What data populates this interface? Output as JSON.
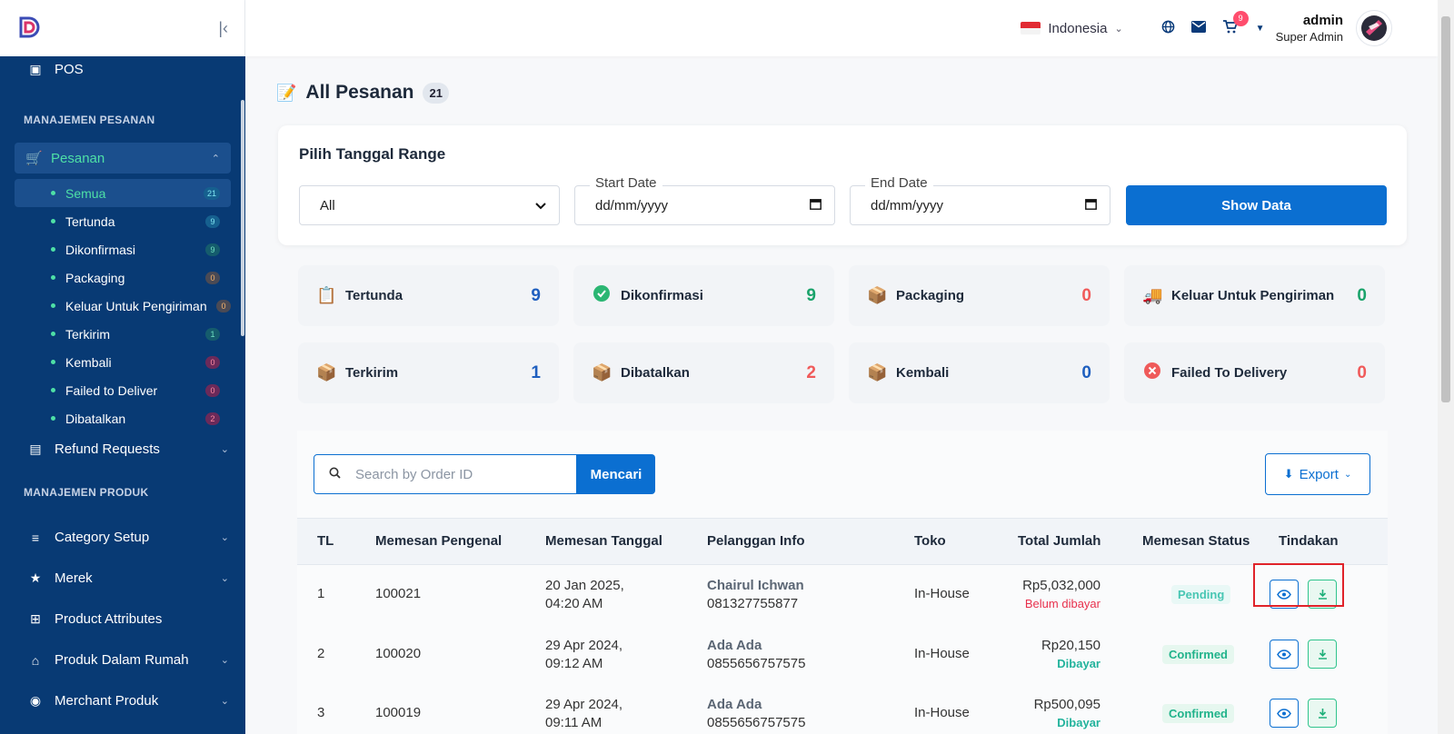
{
  "sidebar": {
    "pos": "POS",
    "section_orders": "MANAJEMEN PESANAN",
    "orders": "Pesanan",
    "sub": [
      {
        "label": "Semua",
        "count": "21"
      },
      {
        "label": "Tertunda",
        "count": "9"
      },
      {
        "label": "Dikonfirmasi",
        "count": "9"
      },
      {
        "label": "Packaging",
        "count": "0"
      },
      {
        "label": "Keluar Untuk Pengiriman",
        "count": "0"
      },
      {
        "label": "Terkirim",
        "count": "1"
      },
      {
        "label": "Kembali",
        "count": "0"
      },
      {
        "label": "Failed to Deliver",
        "count": "0"
      },
      {
        "label": "Dibatalkan",
        "count": "2"
      }
    ],
    "refund": "Refund Requests",
    "section_products": "MANAJEMEN PRODUK",
    "category": "Category Setup",
    "brand": "Merek",
    "attributes": "Product Attributes",
    "inhouse": "Produk Dalam Rumah",
    "merchant": "Merchant Produk"
  },
  "header": {
    "language": "Indonesia",
    "cart_count": "9",
    "user_name": "admin",
    "user_role": "Super Admin"
  },
  "page": {
    "title": "All Pesanan",
    "count": "21"
  },
  "filter": {
    "heading": "Pilih Tanggal Range",
    "select_value": "All",
    "start_label": "Start Date",
    "start_value": "dd/mm/yyyy",
    "end_label": "End Date",
    "end_value": "dd/mm/yyyy",
    "show_button": "Show Data"
  },
  "stats": [
    {
      "label": "Tertunda",
      "value": "9",
      "color": "#1f5fbf"
    },
    {
      "label": "Dikonfirmasi",
      "value": "9",
      "color": "#1aa36b"
    },
    {
      "label": "Packaging",
      "value": "0",
      "color": "#f05a5a"
    },
    {
      "label": "Keluar Untuk Pengiriman",
      "value": "0",
      "color": "#1aa36b"
    },
    {
      "label": "Terkirim",
      "value": "1",
      "color": "#1f5fbf"
    },
    {
      "label": "Dibatalkan",
      "value": "2",
      "color": "#f05a5a"
    },
    {
      "label": "Kembali",
      "value": "0",
      "color": "#1f5fbf"
    },
    {
      "label": "Failed To Delivery",
      "value": "0",
      "color": "#f05a5a"
    }
  ],
  "table": {
    "search_placeholder": "Search by Order ID",
    "search_button": "Mencari",
    "export_button": "Export",
    "headers": [
      "TL",
      "Memesan Pengenal",
      "Memesan Tanggal",
      "Pelanggan Info",
      "Toko",
      "Total Jumlah",
      "Memesan Status",
      "Tindakan"
    ],
    "rows": [
      {
        "sl": "1",
        "id": "100021",
        "date1": "20 Jan 2025,",
        "date2": "04:20 AM",
        "customer": "Chairul Ichwan",
        "phone": "081327755877",
        "store": "In-House",
        "amount": "Rp5,032,000",
        "payment": "Belum dibayar",
        "status": "Pending"
      },
      {
        "sl": "2",
        "id": "100020",
        "date1": "29 Apr 2024,",
        "date2": "09:12 AM",
        "customer": "Ada Ada",
        "phone": "0855656757575",
        "store": "In-House",
        "amount": "Rp20,150",
        "payment": "Dibayar",
        "status": "Confirmed"
      },
      {
        "sl": "3",
        "id": "100019",
        "date1": "29 Apr 2024,",
        "date2": "09:11 AM",
        "customer": "Ada Ada",
        "phone": "0855656757575",
        "store": "In-House",
        "amount": "Rp500,095",
        "payment": "Dibayar",
        "status": "Confirmed"
      }
    ]
  }
}
